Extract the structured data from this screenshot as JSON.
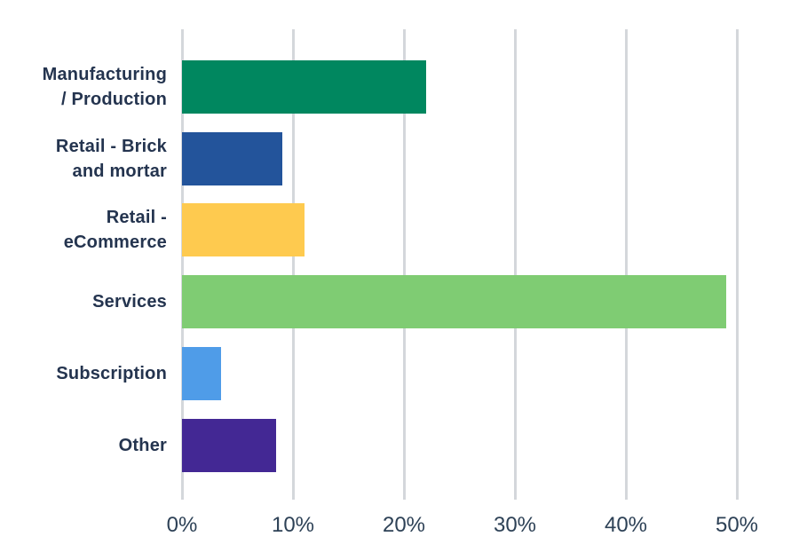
{
  "chart_data": {
    "type": "bar",
    "orientation": "horizontal",
    "title": "",
    "xlabel": "",
    "ylabel": "",
    "legend": "none",
    "grid": "vertical-gridlines-only",
    "unit": "%",
    "categories": [
      "Manufacturing / Production",
      "Retail - Brick and mortar",
      "Retail - eCommerce",
      "Services",
      "Subscription",
      "Other"
    ],
    "label_lines": [
      [
        "Manufacturing",
        "/ Production"
      ],
      [
        "Retail - Brick",
        "and mortar"
      ],
      [
        "Retail -",
        "eCommerce"
      ],
      [
        "Services"
      ],
      [
        "Subscription"
      ],
      [
        "Other"
      ]
    ],
    "values": [
      22,
      9,
      11,
      49,
      3.5,
      8.5
    ],
    "bar_colors": [
      "#00875F",
      "#23549B",
      "#FECA4F",
      "#7FCC73",
      "#4F9CE8",
      "#432894"
    ],
    "x_axis": {
      "min": 0,
      "max": 54,
      "tick_values": [
        0,
        10,
        20,
        30,
        40,
        50
      ],
      "tick_labels": [
        "0%",
        "10%",
        "20%",
        "30%",
        "40%",
        "50%"
      ]
    }
  },
  "colors": {
    "background": "#FFFFFF",
    "gridline": "#D4D7DB",
    "category_label_text": "#24344F",
    "tick_label_text": "#2D4156"
  }
}
